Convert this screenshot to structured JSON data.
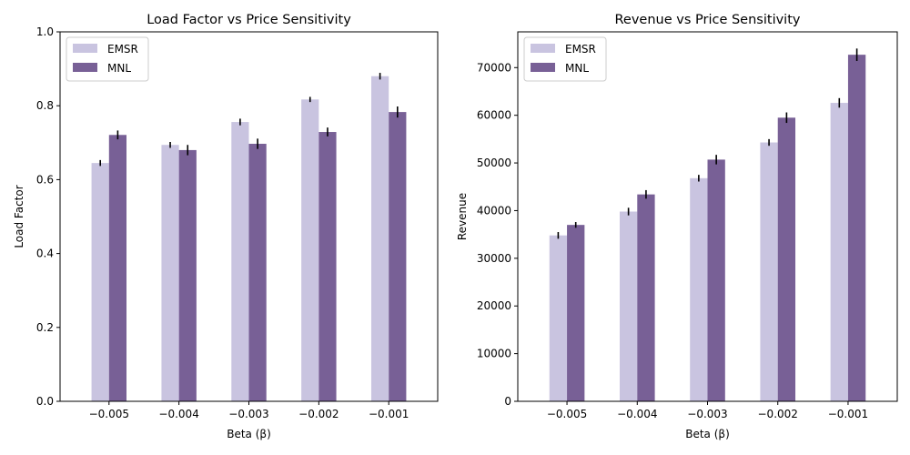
{
  "colors": {
    "emsr": "#c9c4e0",
    "mnl": "#786096",
    "error_bar": "#000000",
    "axes": "#000000",
    "legend_border": "#cccccc"
  },
  "chart_data": [
    {
      "type": "bar",
      "title": "Load Factor vs Price Sensitivity",
      "xlabel": "Beta (β)",
      "ylabel": "Load Factor",
      "categories": [
        "−0.005",
        "−0.004",
        "−0.003",
        "−0.002",
        "−0.001"
      ],
      "ylim": [
        0,
        1.0
      ],
      "yticks": [
        "0.0",
        "0.2",
        "0.4",
        "0.6",
        "0.8",
        "1.0"
      ],
      "ytick_values": [
        0,
        0.2,
        0.4,
        0.6,
        0.8,
        1.0
      ],
      "grid": false,
      "legend_position": "top-left",
      "series": [
        {
          "name": "EMSR",
          "values": [
            0.645,
            0.694,
            0.756,
            0.817,
            0.88
          ],
          "errors": [
            0.008,
            0.008,
            0.009,
            0.007,
            0.009
          ]
        },
        {
          "name": "MNL",
          "values": [
            0.721,
            0.68,
            0.697,
            0.729,
            0.783
          ],
          "errors": [
            0.012,
            0.014,
            0.014,
            0.012,
            0.015
          ]
        }
      ]
    },
    {
      "type": "bar",
      "title": "Revenue vs Price Sensitivity",
      "xlabel": "Beta (β)",
      "ylabel": "Revenue",
      "categories": [
        "−0.005",
        "−0.004",
        "−0.003",
        "−0.002",
        "−0.001"
      ],
      "ylim": [
        0,
        77500
      ],
      "yticks": [
        "0",
        "10000",
        "20000",
        "30000",
        "40000",
        "50000",
        "60000",
        "70000"
      ],
      "ytick_values": [
        0,
        10000,
        20000,
        30000,
        40000,
        50000,
        60000,
        70000
      ],
      "grid": false,
      "legend_position": "top-left",
      "series": [
        {
          "name": "EMSR",
          "values": [
            34800,
            39800,
            46800,
            54300,
            62600
          ],
          "errors": [
            700,
            800,
            700,
            700,
            1000
          ]
        },
        {
          "name": "MNL",
          "values": [
            37000,
            43400,
            50700,
            59500,
            72700
          ],
          "errors": [
            600,
            900,
            1000,
            1100,
            1300
          ]
        }
      ]
    }
  ]
}
